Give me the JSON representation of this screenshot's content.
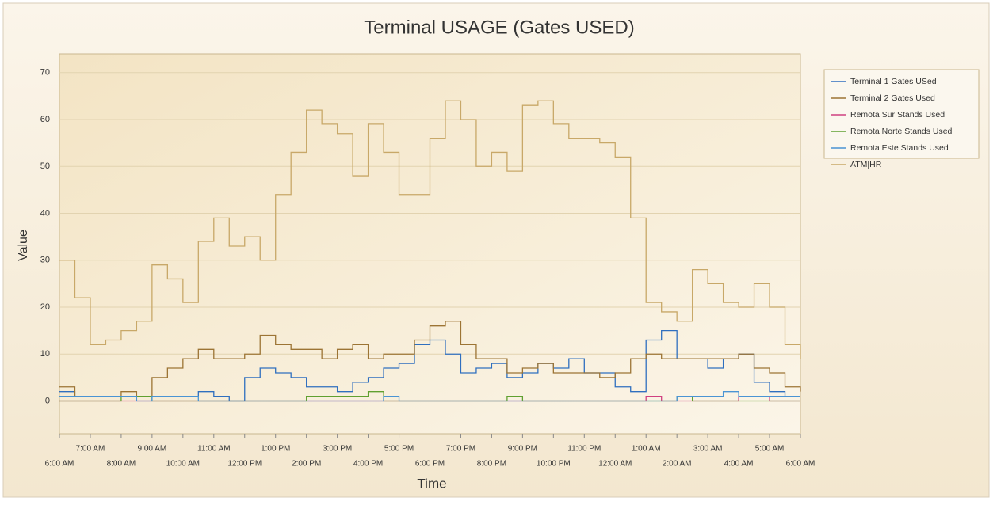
{
  "chart_data": {
    "type": "line",
    "step": true,
    "title": "Terminal USAGE (Gates USED)",
    "x_label": "Time",
    "y_label": "Value",
    "x": [
      0,
      0.5,
      1,
      1.5,
      2,
      2.5,
      3,
      3.5,
      4,
      4.5,
      5,
      5.5,
      6,
      6.5,
      7,
      7.5,
      8,
      8.5,
      9,
      9.5,
      10,
      10.5,
      11,
      11.5,
      12,
      12.5,
      13,
      13.5,
      14,
      14.5,
      15,
      15.5,
      16,
      16.5,
      17,
      17.5,
      18,
      18.5,
      19,
      19.5,
      20,
      20.5,
      21,
      21.5,
      22,
      22.5,
      23,
      23.5,
      24
    ],
    "xlim": [
      0,
      24
    ],
    "xticks": [
      {
        "value": 0,
        "label": "6:00 AM"
      },
      {
        "value": 1,
        "label": "7:00 AM"
      },
      {
        "value": 2,
        "label": "8:00 AM"
      },
      {
        "value": 3,
        "label": "9:00 AM"
      },
      {
        "value": 4,
        "label": "10:00 AM"
      },
      {
        "value": 5,
        "label": "11:00 AM"
      },
      {
        "value": 6,
        "label": "12:00 PM"
      },
      {
        "value": 7,
        "label": "1:00 PM"
      },
      {
        "value": 8,
        "label": "2:00 PM"
      },
      {
        "value": 9,
        "label": "3:00 PM"
      },
      {
        "value": 10,
        "label": "4:00 PM"
      },
      {
        "value": 11,
        "label": "5:00 PM"
      },
      {
        "value": 12,
        "label": "6:00 PM"
      },
      {
        "value": 13,
        "label": "7:00 PM"
      },
      {
        "value": 14,
        "label": "8:00 PM"
      },
      {
        "value": 15,
        "label": "9:00 PM"
      },
      {
        "value": 16,
        "label": "10:00 PM"
      },
      {
        "value": 17,
        "label": "11:00 PM"
      },
      {
        "value": 18,
        "label": "12:00 AM"
      },
      {
        "value": 19,
        "label": "1:00 AM"
      },
      {
        "value": 20,
        "label": "2:00 AM"
      },
      {
        "value": 21,
        "label": "3:00 AM"
      },
      {
        "value": 22,
        "label": "4:00 AM"
      },
      {
        "value": 23,
        "label": "5:00 AM"
      },
      {
        "value": 24,
        "label": "6:00 AM"
      }
    ],
    "ylim": [
      -7,
      74
    ],
    "yticks": [
      0,
      10,
      20,
      30,
      40,
      50,
      60,
      70
    ],
    "grid": true,
    "legend": "right",
    "series": [
      {
        "name": "Terminal 1 Gates USed",
        "color": "#2f6fbf",
        "values": [
          2,
          1,
          1,
          1,
          1,
          1,
          1,
          1,
          1,
          2,
          1,
          0,
          5,
          7,
          6,
          5,
          3,
          3,
          2,
          4,
          5,
          7,
          8,
          12,
          13,
          10,
          6,
          7,
          8,
          5,
          6,
          8,
          7,
          9,
          6,
          6,
          3,
          2,
          13,
          15,
          9,
          9,
          7,
          9,
          10,
          4,
          2,
          1,
          1
        ]
      },
      {
        "name": "Terminal 2 Gates Used",
        "color": "#9c7434",
        "values": [
          3,
          1,
          1,
          1,
          2,
          1,
          5,
          7,
          9,
          11,
          9,
          9,
          10,
          14,
          12,
          11,
          11,
          9,
          11,
          12,
          9,
          10,
          10,
          13,
          16,
          17,
          12,
          9,
          9,
          6,
          7,
          8,
          6,
          6,
          6,
          5,
          6,
          9,
          10,
          9,
          9,
          9,
          9,
          9,
          10,
          7,
          6,
          3,
          2
        ]
      },
      {
        "name": "Remota Sur Stands Used",
        "color": "#d04080",
        "values": [
          0,
          0,
          0,
          0,
          0,
          0,
          0,
          0,
          0,
          0,
          0,
          0,
          0,
          0,
          0,
          0,
          0,
          0,
          0,
          0,
          0,
          0,
          0,
          0,
          0,
          0,
          0,
          0,
          0,
          0,
          0,
          0,
          0,
          0,
          0,
          0,
          0,
          0,
          1,
          0,
          0,
          0,
          0,
          0,
          1,
          1,
          0,
          0,
          0
        ]
      },
      {
        "name": "Remota Norte Stands Used",
        "color": "#60a030",
        "values": [
          0,
          0,
          0,
          0,
          1,
          1,
          0,
          0,
          0,
          0,
          0,
          0,
          0,
          0,
          0,
          0,
          1,
          1,
          1,
          1,
          2,
          0,
          0,
          0,
          0,
          0,
          0,
          0,
          0,
          1,
          0,
          0,
          0,
          0,
          0,
          0,
          0,
          0,
          0,
          0,
          1,
          0,
          0,
          0,
          0,
          0,
          0,
          0,
          0
        ]
      },
      {
        "name": "Remota Este Stands Used",
        "color": "#4a94d4",
        "values": [
          1,
          1,
          1,
          1,
          1,
          0,
          1,
          1,
          1,
          0,
          0,
          0,
          0,
          0,
          0,
          0,
          0,
          0,
          0,
          0,
          0,
          1,
          0,
          0,
          0,
          0,
          0,
          0,
          0,
          0,
          0,
          0,
          0,
          0,
          0,
          0,
          0,
          0,
          0,
          0,
          1,
          1,
          1,
          2,
          1,
          1,
          1,
          1,
          1
        ]
      },
      {
        "name": "ATM|HR",
        "color": "#c8a868",
        "values": [
          30,
          22,
          12,
          13,
          15,
          17,
          29,
          26,
          21,
          34,
          39,
          33,
          35,
          30,
          44,
          53,
          62,
          59,
          57,
          48,
          59,
          53,
          44,
          44,
          56,
          64,
          60,
          50,
          53,
          49,
          63,
          64,
          59,
          56,
          56,
          55,
          52,
          39,
          21,
          19,
          17,
          28,
          25,
          21,
          20,
          25,
          20,
          12,
          9
        ]
      }
    ]
  }
}
